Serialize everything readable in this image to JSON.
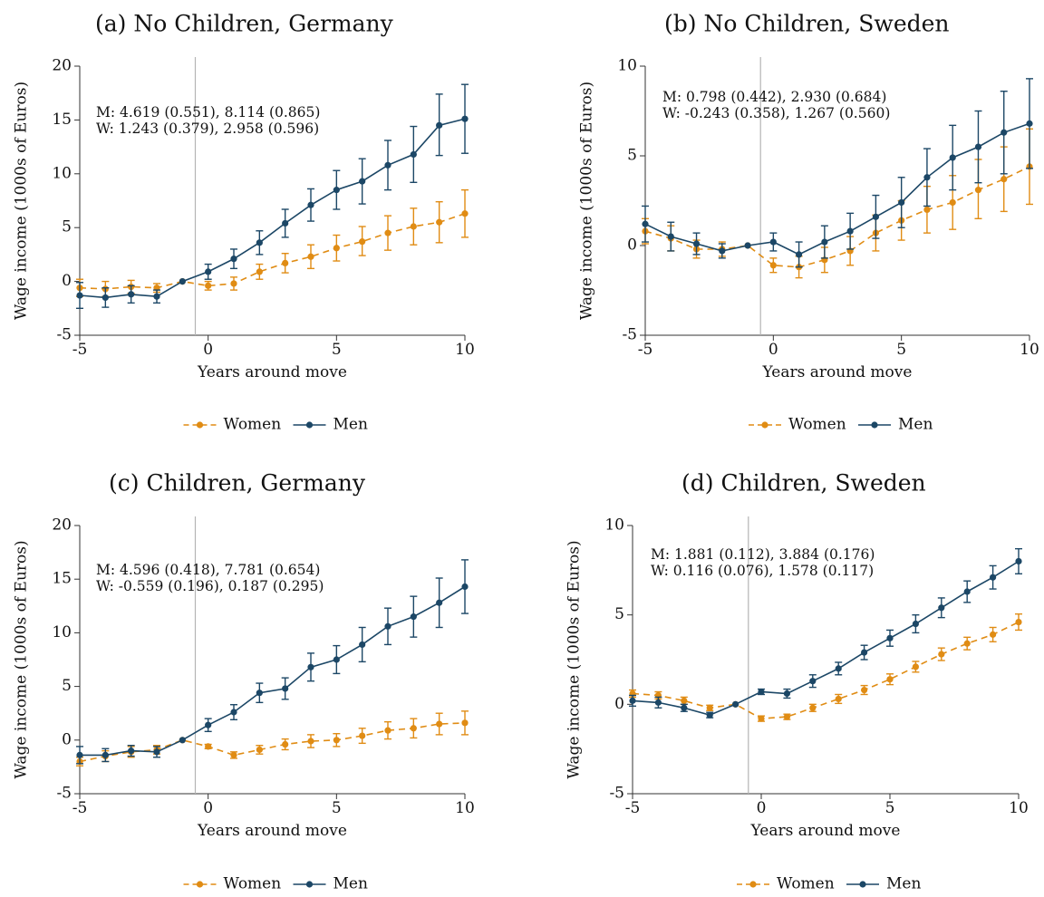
{
  "colors": {
    "women": "#e08c14",
    "men": "#1c4766",
    "axis": "#333333",
    "vline": "#b4b4b4"
  },
  "legend": {
    "women": "Women",
    "men": "Men"
  },
  "chart_data": [
    {
      "type": "line",
      "title": "(a) No Children, Germany",
      "xlabel": "Years around move",
      "ylabel": "Wage income (1000s of Euros)",
      "xlim": [
        -5,
        10
      ],
      "ylim": [
        -5,
        20
      ],
      "xticks": [
        -5,
        0,
        5,
        10
      ],
      "yticks": [
        -5,
        0,
        5,
        10,
        15,
        20
      ],
      "vline": -0.5,
      "annotation": [
        "M: 4.619 (0.551), 8.114 (0.865)",
        "W: 1.243 (0.379), 2.958 (0.596)"
      ],
      "x": [
        -5,
        -4,
        -3,
        -2,
        -1,
        0,
        1,
        2,
        3,
        4,
        5,
        6,
        7,
        8,
        9,
        10
      ],
      "series": [
        {
          "name": "Women",
          "values": [
            -0.6,
            -0.7,
            -0.5,
            -0.6,
            0,
            -0.4,
            -0.2,
            0.9,
            1.7,
            2.3,
            3.1,
            3.7,
            4.5,
            5.1,
            5.5,
            6.3
          ],
          "lo": [
            -1.4,
            -1.4,
            -1.1,
            -1.0,
            0,
            -0.8,
            -0.8,
            0.2,
            0.8,
            1.2,
            1.9,
            2.4,
            2.9,
            3.4,
            3.6,
            4.1
          ],
          "hi": [
            0.2,
            0.0,
            0.1,
            -0.2,
            0,
            0.0,
            0.4,
            1.6,
            2.6,
            3.4,
            4.3,
            5.1,
            6.1,
            6.8,
            7.4,
            8.5
          ]
        },
        {
          "name": "Men",
          "values": [
            -1.3,
            -1.5,
            -1.2,
            -1.4,
            0,
            0.9,
            2.1,
            3.6,
            5.4,
            7.1,
            8.5,
            9.3,
            10.8,
            11.8,
            14.5,
            15.1
          ],
          "lo": [
            -2.5,
            -2.4,
            -2.0,
            -2.0,
            0,
            0.2,
            1.2,
            2.5,
            4.1,
            5.6,
            6.7,
            7.2,
            8.5,
            9.2,
            11.7,
            11.9
          ],
          "hi": [
            -0.1,
            -0.6,
            -0.4,
            -0.8,
            0,
            1.6,
            3.0,
            4.7,
            6.7,
            8.6,
            10.3,
            11.4,
            13.1,
            14.4,
            17.4,
            18.3
          ]
        }
      ]
    },
    {
      "type": "line",
      "title": "(b) No Children, Sweden",
      "xlabel": "Years around move",
      "ylabel": "Wage income (1000s of Euros)",
      "xlim": [
        -5,
        10
      ],
      "ylim": [
        -5,
        10
      ],
      "xticks": [
        -5,
        0,
        5,
        10
      ],
      "yticks": [
        -5,
        0,
        5,
        10
      ],
      "vline": -0.5,
      "annotation": [
        "M: 0.798 (0.442), 2.930 (0.684)",
        "W: -0.243 (0.358), 1.267 (0.560)"
      ],
      "x": [
        -5,
        -4,
        -3,
        -2,
        -1,
        0,
        1,
        2,
        3,
        4,
        5,
        6,
        7,
        8,
        9,
        10
      ],
      "series": [
        {
          "name": "Women",
          "values": [
            0.8,
            0.4,
            -0.2,
            -0.2,
            0,
            -1.1,
            -1.2,
            -0.8,
            -0.3,
            0.7,
            1.4,
            2.0,
            2.4,
            3.1,
            3.7,
            4.4
          ],
          "lo": [
            0.1,
            -0.3,
            -0.7,
            -0.6,
            0,
            -1.5,
            -1.8,
            -1.5,
            -1.1,
            -0.3,
            0.3,
            0.7,
            0.9,
            1.5,
            1.9,
            2.3
          ],
          "hi": [
            1.5,
            1.1,
            0.3,
            0.2,
            0,
            -0.7,
            -0.6,
            -0.1,
            0.5,
            1.7,
            2.5,
            3.3,
            3.9,
            4.8,
            5.5,
            6.5
          ]
        },
        {
          "name": "Men",
          "values": [
            1.2,
            0.5,
            0.1,
            -0.3,
            0,
            0.2,
            -0.5,
            0.2,
            0.8,
            1.6,
            2.4,
            3.8,
            4.9,
            5.5,
            6.3,
            6.8
          ],
          "lo": [
            0.2,
            -0.3,
            -0.5,
            -0.7,
            0,
            -0.3,
            -1.2,
            -0.7,
            -0.2,
            0.4,
            1.0,
            2.2,
            3.1,
            3.5,
            4.0,
            4.3
          ],
          "hi": [
            2.2,
            1.3,
            0.7,
            0.1,
            0,
            0.7,
            0.2,
            1.1,
            1.8,
            2.8,
            3.8,
            5.4,
            6.7,
            7.5,
            8.6,
            9.3
          ]
        }
      ]
    },
    {
      "type": "line",
      "title": "(c) Children, Germany",
      "xlabel": "Years around move",
      "ylabel": "Wage income (1000s of Euros)",
      "xlim": [
        -5,
        10
      ],
      "ylim": [
        -5,
        20
      ],
      "xticks": [
        -5,
        0,
        5,
        10
      ],
      "yticks": [
        -5,
        0,
        5,
        10,
        15,
        20
      ],
      "vline": -0.5,
      "annotation": [
        "M: 4.596 (0.418), 7.781 (0.654)",
        "W: -0.559 (0.196), 0.187 (0.295)"
      ],
      "x": [
        -5,
        -4,
        -3,
        -2,
        -1,
        0,
        1,
        2,
        3,
        4,
        5,
        6,
        7,
        8,
        9,
        10
      ],
      "series": [
        {
          "name": "Women",
          "values": [
            -2.0,
            -1.5,
            -1.1,
            -0.9,
            0,
            -0.6,
            -1.4,
            -0.9,
            -0.4,
            -0.1,
            0.0,
            0.4,
            0.9,
            1.1,
            1.5,
            1.6
          ],
          "lo": [
            -2.4,
            -2.0,
            -1.6,
            -1.3,
            0,
            -0.8,
            -1.7,
            -1.3,
            -0.9,
            -0.7,
            -0.6,
            -0.3,
            0.1,
            0.2,
            0.5,
            0.5
          ],
          "hi": [
            -1.6,
            -1.0,
            -0.6,
            -0.5,
            0,
            -0.4,
            -1.1,
            -0.5,
            0.1,
            0.5,
            0.6,
            1.1,
            1.7,
            2.0,
            2.5,
            2.7
          ]
        },
        {
          "name": "Men",
          "values": [
            -1.4,
            -1.4,
            -1.0,
            -1.1,
            0,
            1.4,
            2.6,
            4.4,
            4.8,
            6.8,
            7.5,
            8.9,
            10.6,
            11.5,
            12.8,
            14.3
          ],
          "lo": [
            -2.2,
            -2.0,
            -1.5,
            -1.6,
            0,
            0.8,
            1.9,
            3.5,
            3.8,
            5.5,
            6.2,
            7.3,
            8.9,
            9.6,
            10.5,
            11.8
          ],
          "hi": [
            -0.6,
            -0.8,
            -0.5,
            -0.6,
            0,
            2.0,
            3.3,
            5.3,
            5.8,
            8.1,
            8.8,
            10.5,
            12.3,
            13.4,
            15.1,
            16.8
          ]
        }
      ]
    },
    {
      "type": "line",
      "title": "(d) Children, Sweden",
      "xlabel": "Years around move",
      "ylabel": "Wage income (1000s of Euros)",
      "xlim": [
        -5,
        10
      ],
      "ylim": [
        -5,
        10
      ],
      "xticks": [
        -5,
        0,
        5,
        10
      ],
      "yticks": [
        -5,
        0,
        5,
        10
      ],
      "vline": -0.5,
      "annotation": [
        "M: 1.881 (0.112), 3.884 (0.176)",
        "W: 0.116 (0.076), 1.578 (0.117)"
      ],
      "x": [
        -5,
        -4,
        -3,
        -2,
        -1,
        0,
        1,
        2,
        3,
        4,
        5,
        6,
        7,
        8,
        9,
        10
      ],
      "series": [
        {
          "name": "Women",
          "values": [
            0.6,
            0.5,
            0.2,
            -0.2,
            0,
            -0.8,
            -0.7,
            -0.2,
            0.3,
            0.8,
            1.4,
            2.1,
            2.8,
            3.4,
            3.9,
            4.6
          ],
          "lo": [
            0.4,
            0.3,
            0.0,
            -0.35,
            0,
            -0.95,
            -0.85,
            -0.4,
            0.05,
            0.55,
            1.1,
            1.8,
            2.45,
            3.05,
            3.5,
            4.15
          ],
          "hi": [
            0.8,
            0.7,
            0.4,
            -0.05,
            0,
            -0.65,
            -0.55,
            0.0,
            0.55,
            1.05,
            1.7,
            2.4,
            3.15,
            3.75,
            4.3,
            5.05
          ]
        },
        {
          "name": "Men",
          "values": [
            0.2,
            0.1,
            -0.2,
            -0.6,
            0,
            0.7,
            0.6,
            1.3,
            2.0,
            2.9,
            3.7,
            4.5,
            5.4,
            6.3,
            7.1,
            8.0
          ],
          "lo": [
            -0.1,
            -0.2,
            -0.4,
            -0.75,
            0,
            0.55,
            0.35,
            0.95,
            1.65,
            2.5,
            3.25,
            4.0,
            4.85,
            5.7,
            6.45,
            7.3
          ],
          "hi": [
            0.5,
            0.4,
            0.0,
            -0.45,
            0,
            0.85,
            0.85,
            1.65,
            2.35,
            3.3,
            4.15,
            5.0,
            5.95,
            6.9,
            7.75,
            8.7
          ]
        }
      ]
    }
  ]
}
